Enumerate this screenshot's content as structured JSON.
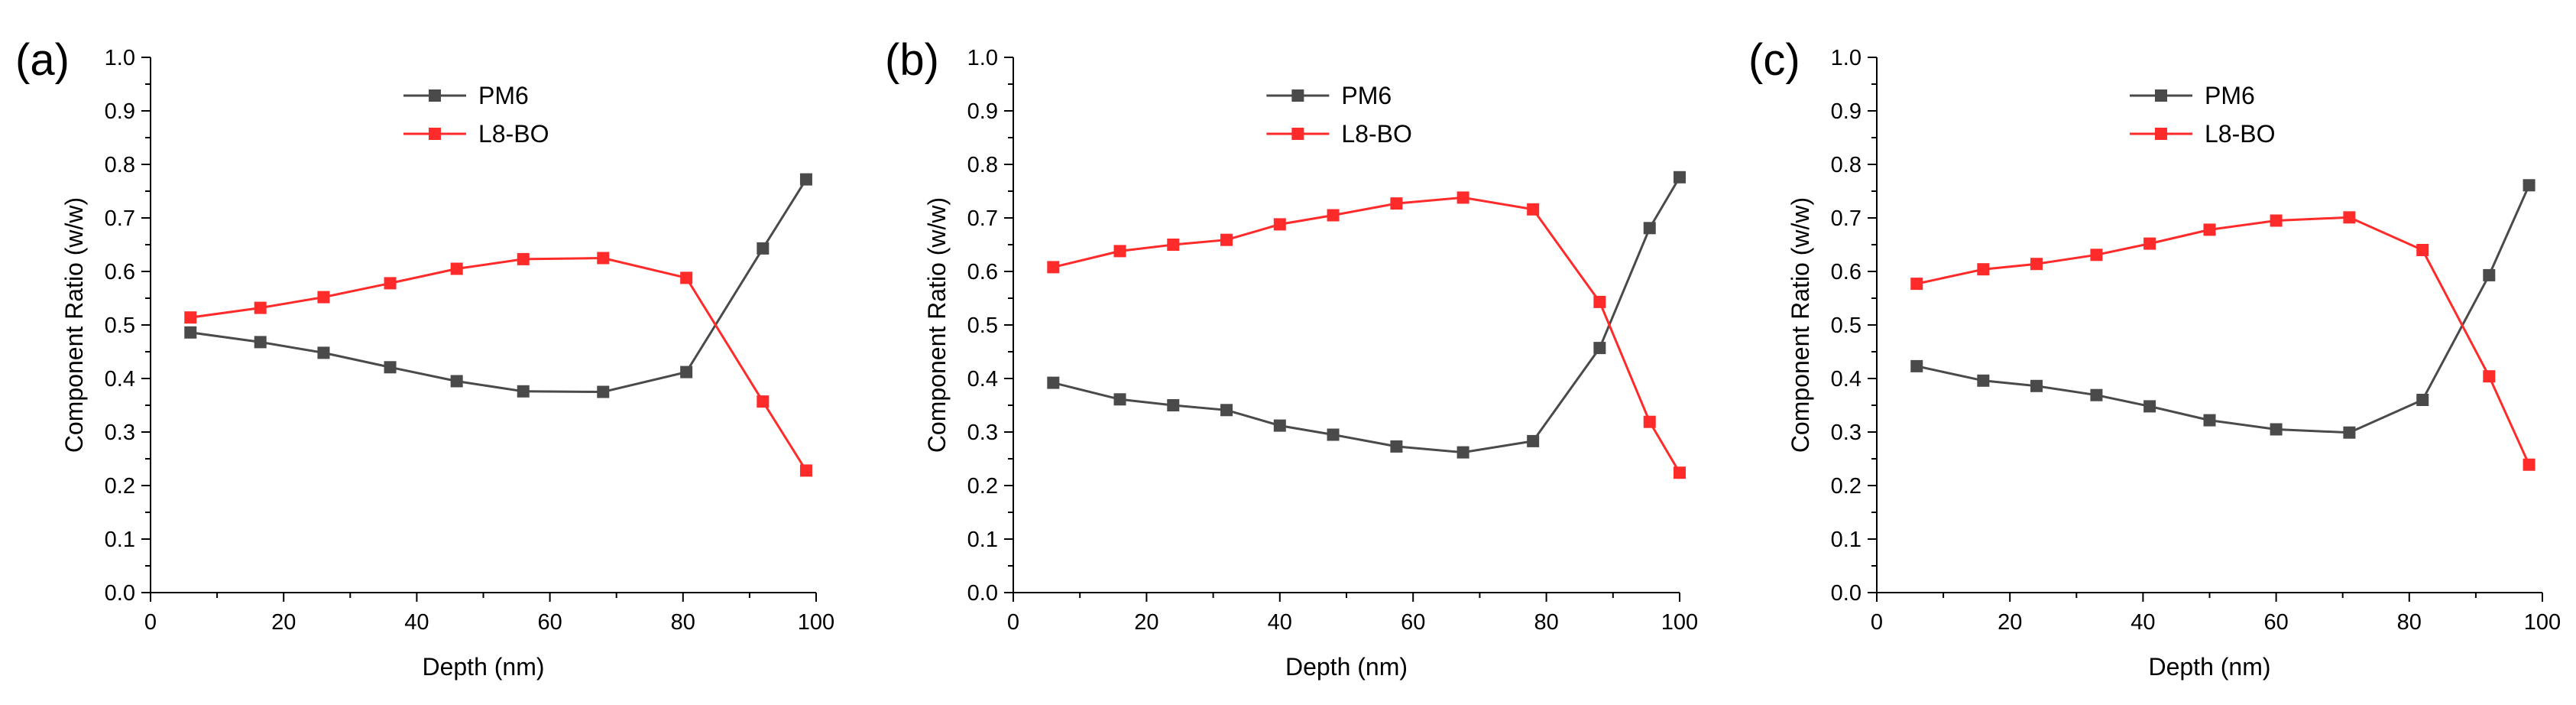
{
  "colors": {
    "PM6": "#4a4a4a",
    "L8-BO": "#ff2a2a",
    "axis": "#000000"
  },
  "chart_data": [
    {
      "type": "line",
      "panel_label": "(a)",
      "xlabel": "Depth (nm)",
      "ylabel": "Component Ratio (w/w)",
      "xlim": [
        0,
        100
      ],
      "ylim": [
        0.0,
        1.0
      ],
      "xticks": [
        "0",
        "20",
        "40",
        "60",
        "80",
        "100"
      ],
      "yticks": [
        "0.0",
        "0.1",
        "0.2",
        "0.3",
        "0.4",
        "0.5",
        "0.6",
        "0.7",
        "0.8",
        "0.9",
        "1.0"
      ],
      "legend_position": "top-center",
      "series": [
        {
          "name": "PM6",
          "x": [
            6,
            16.5,
            26,
            36,
            46,
            56,
            68,
            80.5,
            92,
            98.5
          ],
          "y": [
            0.486,
            0.468,
            0.448,
            0.421,
            0.395,
            0.376,
            0.375,
            0.412,
            0.643,
            0.772
          ]
        },
        {
          "name": "L8-BO",
          "x": [
            6,
            16.5,
            26,
            36,
            46,
            56,
            68,
            80.5,
            92,
            98.5
          ],
          "y": [
            0.514,
            0.532,
            0.552,
            0.578,
            0.605,
            0.623,
            0.625,
            0.588,
            0.357,
            0.228
          ]
        }
      ]
    },
    {
      "type": "line",
      "panel_label": "(b)",
      "xlabel": "Depth (nm)",
      "ylabel": "Component Ratio (w/w)",
      "xlim": [
        0,
        100
      ],
      "ylim": [
        0.0,
        1.0
      ],
      "xticks": [
        "0",
        "20",
        "40",
        "60",
        "80",
        "100"
      ],
      "yticks": [
        "0.0",
        "0.1",
        "0.2",
        "0.3",
        "0.4",
        "0.5",
        "0.6",
        "0.7",
        "0.8",
        "0.9",
        "1.0"
      ],
      "legend_position": "top-center",
      "series": [
        {
          "name": "PM6",
          "x": [
            6,
            16,
            24,
            32,
            40,
            48,
            57.5,
            67.5,
            78,
            88,
            95.5,
            100
          ],
          "y": [
            0.392,
            0.361,
            0.35,
            0.341,
            0.312,
            0.295,
            0.273,
            0.262,
            0.283,
            0.457,
            0.681,
            0.776
          ]
        },
        {
          "name": "L8-BO",
          "x": [
            6,
            16,
            24,
            32,
            40,
            48,
            57.5,
            67.5,
            78,
            88,
            95.5,
            100
          ],
          "y": [
            0.608,
            0.638,
            0.65,
            0.659,
            0.688,
            0.705,
            0.727,
            0.738,
            0.716,
            0.543,
            0.319,
            0.224
          ]
        }
      ]
    },
    {
      "type": "line",
      "panel_label": "(c)",
      "xlabel": "Depth (nm)",
      "ylabel": "Component Ratio (w/w)",
      "xlim": [
        0,
        100
      ],
      "ylim": [
        0.0,
        1.0
      ],
      "xticks": [
        "0",
        "20",
        "40",
        "60",
        "80",
        "100"
      ],
      "yticks": [
        "0.0",
        "0.1",
        "0.2",
        "0.3",
        "0.4",
        "0.5",
        "0.6",
        "0.7",
        "0.8",
        "0.9",
        "1.0"
      ],
      "legend_position": "top-center",
      "series": [
        {
          "name": "PM6",
          "x": [
            6,
            16,
            24,
            33,
            41,
            50,
            60,
            71,
            82,
            92,
            98
          ],
          "y": [
            0.423,
            0.396,
            0.386,
            0.369,
            0.348,
            0.322,
            0.305,
            0.299,
            0.36,
            0.593,
            0.761
          ]
        },
        {
          "name": "L8-BO",
          "x": [
            6,
            16,
            24,
            33,
            41,
            50,
            60,
            71,
            82,
            92,
            98
          ],
          "y": [
            0.577,
            0.604,
            0.614,
            0.631,
            0.652,
            0.678,
            0.695,
            0.701,
            0.64,
            0.404,
            0.239
          ]
        }
      ]
    }
  ]
}
